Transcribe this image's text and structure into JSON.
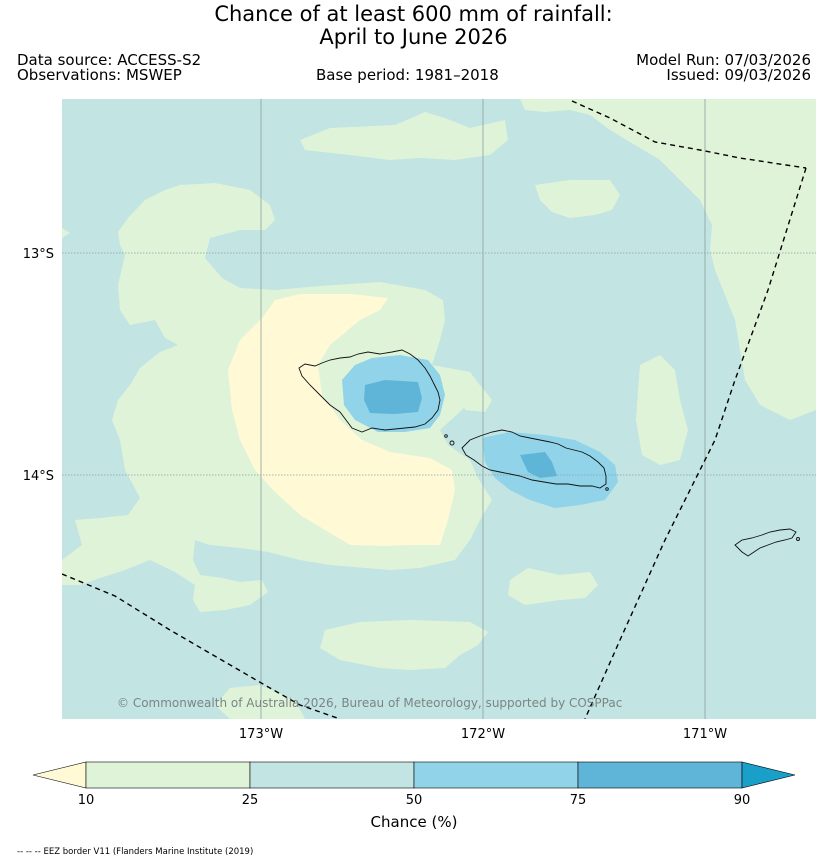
{
  "title": {
    "line1": "Chance of at least 600 mm of rainfall:",
    "line2": "April to June 2026"
  },
  "meta": {
    "data_source": "Data source: ACCESS-S2",
    "observations": "Observations: MSWEP",
    "base_period": "Base period: 1981–2018",
    "model_run": "Model Run: 07/03/2026",
    "issued": "Issued: 09/03/2026"
  },
  "map": {
    "lat_labels": [
      "13°S",
      "14°S"
    ],
    "lon_labels": [
      "173°W",
      "172°W",
      "171°W"
    ],
    "copyright": "© Commonwealth of Australia 2026, Bureau of Meteorology, supported by COSPPac",
    "colors": {
      "band_lt10": "#fff9d6",
      "band_10_25": "#dff3d9",
      "band_25_50": "#c2e4e2",
      "band_50_75": "#91d3e8",
      "band_75_90": "#5fb5d7",
      "band_gt90": "#1a9fc9"
    }
  },
  "colorbar": {
    "ticks": [
      "10",
      "25",
      "50",
      "75",
      "90"
    ],
    "label": "Chance (%)"
  },
  "footer": {
    "eez_note": "-- -- -- EEZ border V11 (Flanders Marine Institute (2019)"
  }
}
